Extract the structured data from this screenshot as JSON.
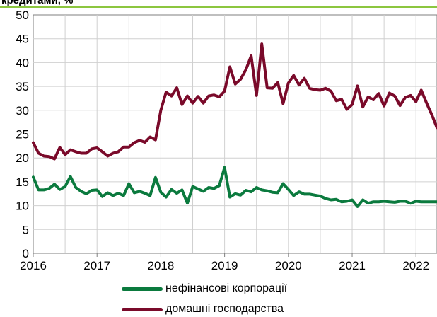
{
  "chart_data": {
    "type": "line",
    "title": "кредитами, %",
    "xlabel": "",
    "ylabel": "",
    "xlim": [
      2016.0,
      2022.33
    ],
    "ylim": [
      0,
      50
    ],
    "yticks": [
      0,
      5,
      10,
      15,
      20,
      25,
      30,
      35,
      40,
      45,
      50
    ],
    "xticks": [
      2016,
      2017,
      2018,
      2019,
      2020,
      2021,
      2022
    ],
    "xtick_labels": [
      "2016",
      "2017",
      "2018",
      "2019",
      "2020",
      "2021",
      "2022"
    ],
    "grid": true,
    "legend_position": "bottom",
    "series": [
      {
        "name": "нефінансові корпорації",
        "color": "#0b7a3e",
        "x": [
          2016.0,
          2016.083,
          2016.167,
          2016.25,
          2016.333,
          2016.417,
          2016.5,
          2016.583,
          2016.667,
          2016.75,
          2016.833,
          2016.917,
          2017.0,
          2017.083,
          2017.167,
          2017.25,
          2017.333,
          2017.417,
          2017.5,
          2017.583,
          2017.667,
          2017.75,
          2017.833,
          2017.917,
          2018.0,
          2018.083,
          2018.167,
          2018.25,
          2018.333,
          2018.417,
          2018.5,
          2018.583,
          2018.667,
          2018.75,
          2018.833,
          2018.917,
          2019.0,
          2019.083,
          2019.167,
          2019.25,
          2019.333,
          2019.417,
          2019.5,
          2019.583,
          2019.667,
          2019.75,
          2019.833,
          2019.917,
          2020.0,
          2020.083,
          2020.167,
          2020.25,
          2020.333,
          2020.417,
          2020.5,
          2020.583,
          2020.667,
          2020.75,
          2020.833,
          2020.917,
          2021.0,
          2021.083,
          2021.167,
          2021.25,
          2021.333,
          2021.417,
          2021.5,
          2021.583,
          2021.667,
          2021.75,
          2021.833,
          2021.917,
          2022.0,
          2022.083,
          2022.167,
          2022.25,
          2022.333
        ],
        "values": [
          16.0,
          13.3,
          13.3,
          13.6,
          14.5,
          13.4,
          14.0,
          16.1,
          13.8,
          13.0,
          12.5,
          13.2,
          13.3,
          11.9,
          12.7,
          12.1,
          12.6,
          12.1,
          14.6,
          12.7,
          13.0,
          12.6,
          12.1,
          15.9,
          12.8,
          11.8,
          13.4,
          12.6,
          13.3,
          10.5,
          14.0,
          13.5,
          13.0,
          13.8,
          13.6,
          14.2,
          18.0,
          11.8,
          12.5,
          12.2,
          13.2,
          12.9,
          13.8,
          13.3,
          13.1,
          12.8,
          12.7,
          14.6,
          13.4,
          12.1,
          12.9,
          12.4,
          12.4,
          12.2,
          12.0,
          11.5,
          11.2,
          11.3,
          10.8,
          10.9,
          11.2,
          9.8,
          11.2,
          10.5,
          10.8,
          10.8,
          10.9,
          10.8,
          10.7,
          10.9,
          10.9,
          10.5,
          10.9,
          10.8,
          10.8,
          10.8,
          10.8
        ]
      },
      {
        "name": "домашні господарства",
        "color": "#7a0a2a",
        "x": [
          2016.0,
          2016.083,
          2016.167,
          2016.25,
          2016.333,
          2016.417,
          2016.5,
          2016.583,
          2016.667,
          2016.75,
          2016.833,
          2016.917,
          2017.0,
          2017.083,
          2017.167,
          2017.25,
          2017.333,
          2017.417,
          2017.5,
          2017.583,
          2017.667,
          2017.75,
          2017.833,
          2017.917,
          2018.0,
          2018.083,
          2018.167,
          2018.25,
          2018.333,
          2018.417,
          2018.5,
          2018.583,
          2018.667,
          2018.75,
          2018.833,
          2018.917,
          2019.0,
          2019.083,
          2019.167,
          2019.25,
          2019.333,
          2019.417,
          2019.5,
          2019.583,
          2019.667,
          2019.75,
          2019.833,
          2019.917,
          2020.0,
          2020.083,
          2020.167,
          2020.25,
          2020.333,
          2020.417,
          2020.5,
          2020.583,
          2020.667,
          2020.75,
          2020.833,
          2020.917,
          2021.0,
          2021.083,
          2021.167,
          2021.25,
          2021.333,
          2021.417,
          2021.5,
          2021.583,
          2021.667,
          2021.75,
          2021.833,
          2021.917,
          2022.0,
          2022.083,
          2022.167,
          2022.25,
          2022.333
        ],
        "values": [
          23.2,
          21.0,
          20.4,
          20.3,
          19.8,
          22.2,
          20.7,
          21.7,
          21.3,
          21.0,
          21.0,
          21.9,
          22.1,
          21.3,
          20.4,
          21.0,
          21.3,
          22.3,
          22.3,
          23.2,
          23.7,
          23.3,
          24.4,
          23.8,
          30.0,
          33.8,
          33.0,
          34.7,
          31.2,
          33.0,
          31.5,
          32.9,
          31.5,
          33.0,
          33.2,
          32.8,
          34.0,
          39.1,
          35.5,
          36.5,
          38.5,
          41.4,
          33.1,
          43.9,
          34.7,
          34.6,
          35.8,
          31.4,
          35.7,
          37.3,
          35.3,
          36.7,
          34.6,
          34.3,
          34.2,
          34.6,
          34.0,
          32.0,
          32.3,
          30.2,
          31.2,
          35.1,
          30.7,
          32.8,
          32.2,
          33.5,
          30.9,
          33.6,
          33.0,
          31.0,
          32.7,
          33.1,
          31.8,
          34.2,
          31.5,
          29.0,
          26.2
        ]
      }
    ]
  }
}
